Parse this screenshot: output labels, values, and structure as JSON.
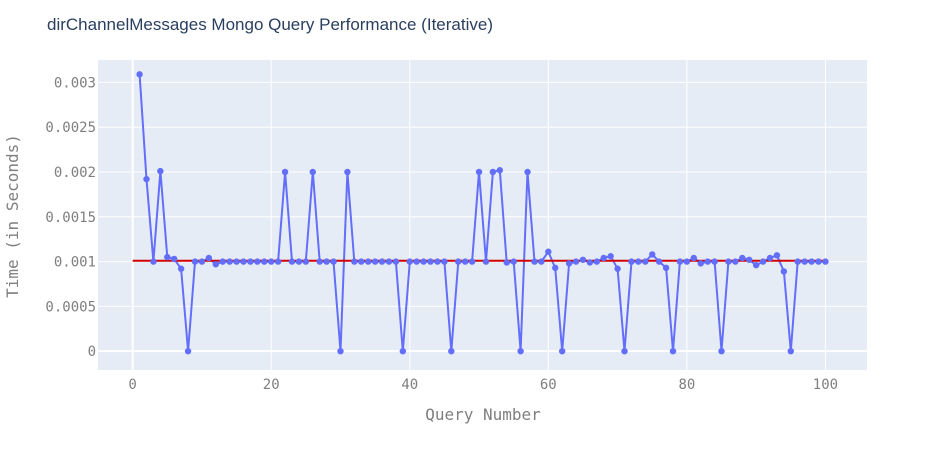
{
  "chart_data": {
    "type": "line",
    "title": "dirChannelMessages Mongo Query Performance (Iterative)",
    "xlabel": "Query Number",
    "ylabel": "Time (in Seconds)",
    "xlim": [
      -5,
      106
    ],
    "ylim": [
      -0.00021,
      0.00325
    ],
    "x_ticks": [
      0,
      20,
      40,
      60,
      80,
      100
    ],
    "y_ticks": [
      0,
      0.0005,
      0.001,
      0.0015,
      0.002,
      0.0025,
      0.003
    ],
    "y_tick_labels": [
      "0",
      "0.0005",
      "0.001",
      "0.0015",
      "0.002",
      "0.0025",
      "0.003"
    ],
    "grid": true,
    "colors": {
      "background": "#e5ecf6",
      "grid": "#ffffff",
      "series": "#636efa",
      "mean_line": "#d00000"
    },
    "series": [
      {
        "x": [
          1,
          2,
          3,
          4,
          5,
          6,
          7,
          8,
          9,
          10,
          11,
          12,
          13,
          14,
          15,
          16,
          17,
          18,
          19,
          20,
          21,
          22,
          23,
          24,
          25,
          26,
          27,
          28,
          29,
          30,
          31,
          32,
          33,
          34,
          35,
          36,
          37,
          38,
          39,
          40,
          41,
          42,
          43,
          44,
          45,
          46,
          47,
          48,
          49,
          50,
          51,
          52,
          53,
          54,
          55,
          56,
          57,
          58,
          59,
          60,
          61,
          62,
          63,
          64,
          65,
          66,
          67,
          68,
          69,
          70,
          71,
          72,
          73,
          74,
          75,
          76,
          77,
          78,
          79,
          80,
          81,
          82,
          83,
          84,
          85,
          86,
          87,
          88,
          89,
          90,
          91,
          92,
          93,
          94,
          95,
          96,
          97,
          98,
          99,
          100
        ],
        "values": [
          0.00309,
          0.00192,
          0.001,
          0.00201,
          0.00105,
          0.00103,
          0.00092,
          0.0,
          0.001,
          0.001,
          0.00104,
          0.00097,
          0.001,
          0.001,
          0.001,
          0.001,
          0.001,
          0.001,
          0.001,
          0.001,
          0.001,
          0.002,
          0.001,
          0.001,
          0.001,
          0.002,
          0.001,
          0.001,
          0.001,
          0.0,
          0.002,
          0.001,
          0.001,
          0.001,
          0.001,
          0.001,
          0.001,
          0.001,
          0.0,
          0.001,
          0.001,
          0.001,
          0.001,
          0.001,
          0.001,
          0.0,
          0.001,
          0.001,
          0.001,
          0.002,
          0.001,
          0.002,
          0.00202,
          0.00099,
          0.001,
          0.0,
          0.002,
          0.001,
          0.001,
          0.00111,
          0.00093,
          0.0,
          0.00098,
          0.001,
          0.00102,
          0.00099,
          0.001,
          0.00104,
          0.00106,
          0.00092,
          0.0,
          0.001,
          0.001,
          0.001,
          0.00108,
          0.001,
          0.00093,
          0.0,
          0.001,
          0.001,
          0.00104,
          0.00098,
          0.001,
          0.001,
          0.0,
          0.001,
          0.001,
          0.00104,
          0.00102,
          0.00096,
          0.001,
          0.00104,
          0.00107,
          0.00089,
          0.0,
          0.001,
          0.001,
          0.001,
          0.001,
          0.001
        ]
      }
    ],
    "mean_line": {
      "x": [
        0,
        100
      ],
      "y": [
        0.00101,
        0.00101
      ]
    }
  }
}
